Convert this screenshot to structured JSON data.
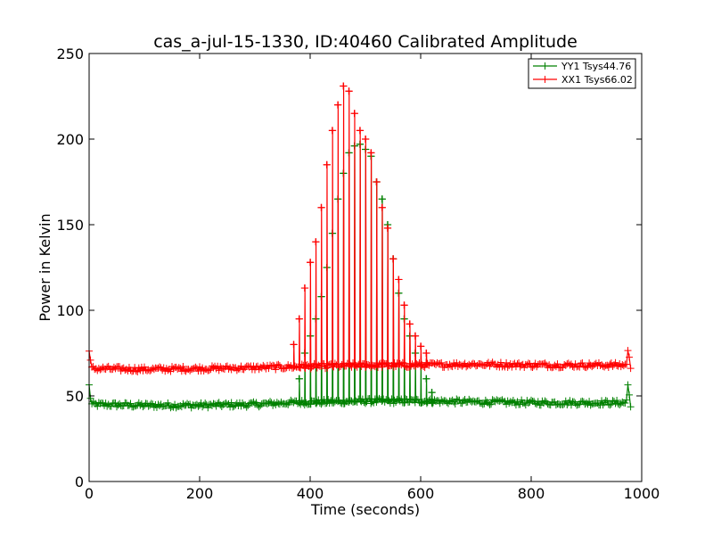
{
  "chart_data": {
    "type": "line",
    "title": "cas_a-jul-15-1330, ID:40460 Calibrated Amplitude",
    "xlabel": "Time (seconds)",
    "ylabel": "Power in Kelvin",
    "xlim": [
      0,
      1000
    ],
    "ylim": [
      0,
      250
    ],
    "xticks": [
      "0",
      "200",
      "400",
      "600",
      "800",
      "1000"
    ],
    "yticks": [
      "0",
      "50",
      "100",
      "150",
      "200",
      "250"
    ],
    "grid": false,
    "legend_position": "top-right",
    "marker": "plus",
    "series": [
      {
        "name": "YY1 Tsys44.76",
        "color": "#008000",
        "baseline": [
          [
            0,
            56
          ],
          [
            4,
            45
          ],
          [
            100,
            44.5
          ],
          [
            200,
            44.5
          ],
          [
            300,
            45
          ],
          [
            360,
            46
          ],
          [
            500,
            47
          ],
          [
            600,
            47
          ],
          [
            700,
            46.5
          ],
          [
            800,
            46
          ],
          [
            900,
            46
          ],
          [
            972,
            46
          ],
          [
            975,
            56
          ],
          [
            980,
            45
          ]
        ],
        "peaks": [
          [
            380,
            60
          ],
          [
            390,
            75
          ],
          [
            400,
            85
          ],
          [
            410,
            95
          ],
          [
            420,
            108
          ],
          [
            430,
            125
          ],
          [
            440,
            145
          ],
          [
            450,
            165
          ],
          [
            460,
            180
          ],
          [
            470,
            192
          ],
          [
            480,
            196
          ],
          [
            490,
            197
          ],
          [
            500,
            194
          ],
          [
            510,
            190
          ],
          [
            520,
            175
          ],
          [
            530,
            165
          ],
          [
            540,
            150
          ],
          [
            550,
            130
          ],
          [
            560,
            110
          ],
          [
            570,
            95
          ],
          [
            580,
            85
          ],
          [
            590,
            75
          ],
          [
            600,
            68
          ],
          [
            610,
            60
          ],
          [
            620,
            52
          ]
        ]
      },
      {
        "name": "XX1 Tsys66.02",
        "color": "#ff0000",
        "baseline": [
          [
            0,
            76
          ],
          [
            4,
            66
          ],
          [
            100,
            65.5
          ],
          [
            200,
            66
          ],
          [
            300,
            66.5
          ],
          [
            360,
            67
          ],
          [
            500,
            68
          ],
          [
            600,
            68
          ],
          [
            700,
            68.5
          ],
          [
            800,
            68
          ],
          [
            900,
            68
          ],
          [
            972,
            68
          ],
          [
            975,
            76
          ],
          [
            980,
            67
          ]
        ],
        "peaks": [
          [
            370,
            80
          ],
          [
            380,
            95
          ],
          [
            390,
            113
          ],
          [
            400,
            128
          ],
          [
            410,
            140
          ],
          [
            420,
            160
          ],
          [
            430,
            185
          ],
          [
            440,
            205
          ],
          [
            450,
            220
          ],
          [
            460,
            231
          ],
          [
            470,
            228
          ],
          [
            480,
            215
          ],
          [
            490,
            205
          ],
          [
            500,
            200
          ],
          [
            510,
            192
          ],
          [
            520,
            175
          ],
          [
            530,
            160
          ],
          [
            540,
            148
          ],
          [
            550,
            130
          ],
          [
            560,
            118
          ],
          [
            570,
            103
          ],
          [
            580,
            92
          ],
          [
            590,
            85
          ],
          [
            600,
            79
          ],
          [
            610,
            75
          ]
        ]
      }
    ]
  }
}
